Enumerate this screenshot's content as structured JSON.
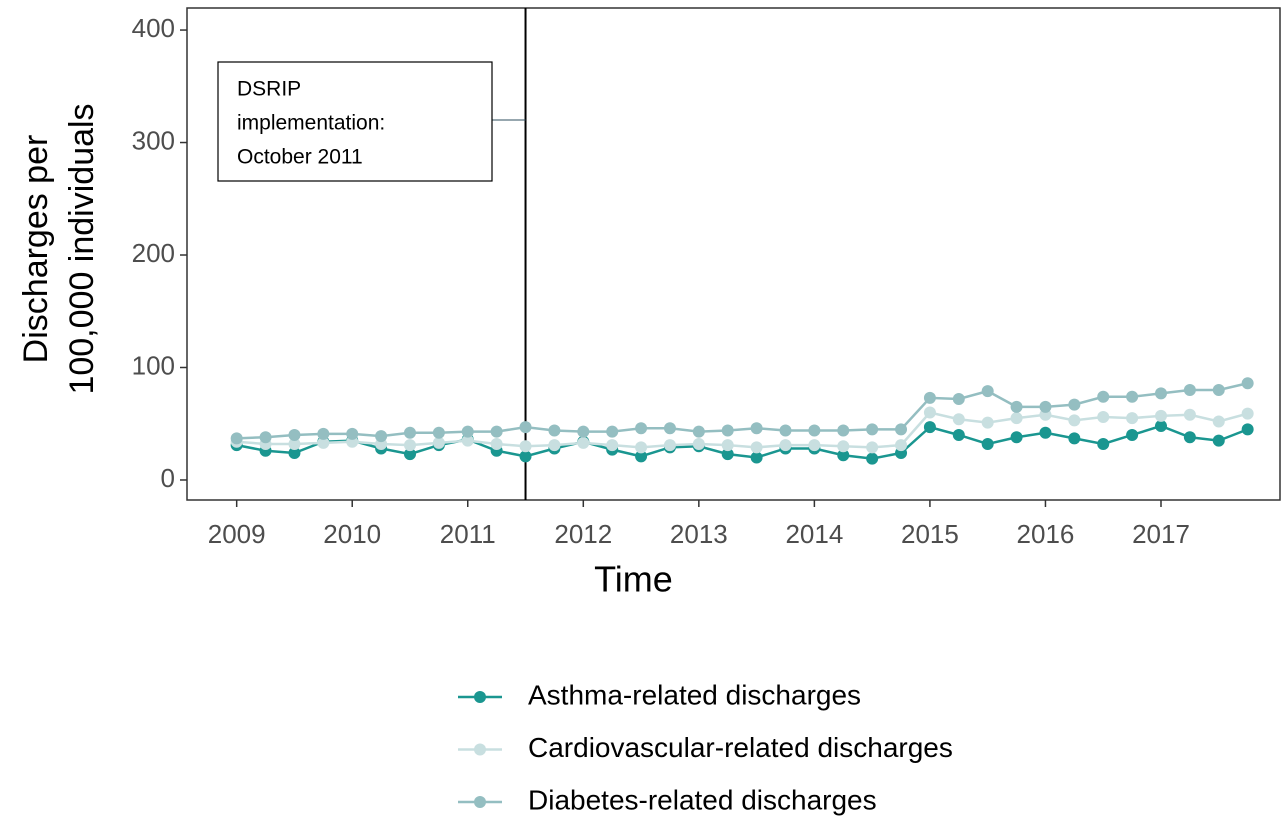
{
  "chart_data": {
    "type": "line",
    "xlabel": "Time",
    "ylabel": [
      "Discharges per",
      "100,000 individuals"
    ],
    "x": [
      2009,
      2009.25,
      2009.5,
      2009.75,
      2010,
      2010.25,
      2010.5,
      2010.75,
      2011,
      2011.25,
      2011.5,
      2011.75,
      2012,
      2012.25,
      2012.5,
      2012.75,
      2013,
      2013.25,
      2013.5,
      2013.75,
      2014,
      2014.25,
      2014.5,
      2014.75,
      2015,
      2015.25,
      2015.5,
      2015.75,
      2016,
      2016.25,
      2016.5,
      2016.75,
      2017,
      2017.25,
      2017.5,
      2017.75
    ],
    "series": [
      {
        "name": "Asthma-related discharges",
        "color": "#1a9690",
        "values": [
          31,
          26,
          24,
          34,
          35,
          28,
          23,
          31,
          36,
          26,
          21,
          28,
          34,
          27,
          21,
          29,
          30,
          23,
          20,
          28,
          28,
          22,
          19,
          24,
          47,
          40,
          32,
          38,
          42,
          37,
          32,
          40,
          48,
          38,
          35,
          45
        ]
      },
      {
        "name": "Cardiovascular-related discharges",
        "color": "#c8dfe0",
        "values": [
          34,
          32,
          32,
          33,
          34,
          32,
          31,
          33,
          35,
          32,
          30,
          31,
          33,
          31,
          29,
          31,
          32,
          31,
          29,
          31,
          31,
          30,
          29,
          31,
          60,
          54,
          51,
          55,
          58,
          53,
          56,
          55,
          57,
          58,
          52,
          59
        ]
      },
      {
        "name": "Diabetes-related discharges",
        "color": "#94bec1",
        "values": [
          37,
          38,
          40,
          41,
          41,
          39,
          42,
          42,
          43,
          43,
          47,
          44,
          43,
          43,
          46,
          46,
          43,
          44,
          46,
          44,
          44,
          44,
          45,
          45,
          73,
          72,
          79,
          65,
          65,
          67,
          74,
          74,
          77,
          80,
          80,
          86
        ]
      }
    ],
    "xlim": [
      2008.57,
      2018.03
    ],
    "ylim": [
      -17.8,
      419.6
    ],
    "xticks": [
      2009,
      2010,
      2011,
      2012,
      2013,
      2014,
      2015,
      2016,
      2017
    ],
    "yticks": [
      0,
      100,
      200,
      300,
      400
    ],
    "vline": 2011.5,
    "annotation": {
      "text": [
        "DSRIP",
        "implementation:",
        "October 2011"
      ],
      "y": 320
    },
    "legend": "bottom"
  }
}
